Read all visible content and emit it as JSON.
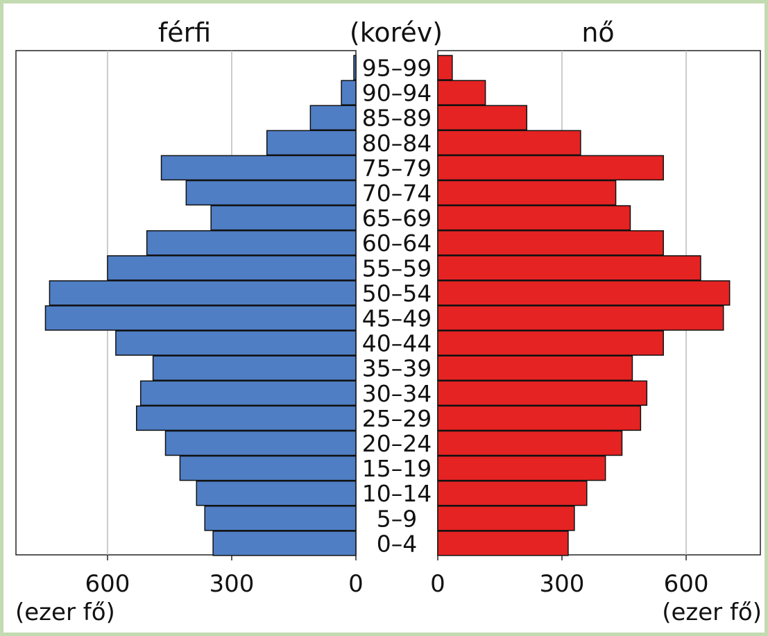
{
  "chart_data": {
    "type": "bar",
    "orientation": "horizontal-population-pyramid",
    "header": {
      "left": "férfi",
      "center": "(korév)",
      "right": "nő"
    },
    "categories": [
      "95–99",
      "90–94",
      "85–89",
      "80–84",
      "75–79",
      "70–74",
      "65–69",
      "60–64",
      "55–59",
      "50–54",
      "45–49",
      "40–44",
      "35–39",
      "30–34",
      "25–29",
      "20–24",
      "15–19",
      "10–14",
      "5–9",
      "0–4"
    ],
    "series": [
      {
        "name": "férfi",
        "color": "#4f7ec4",
        "values": [
          5,
          35,
          110,
          215,
          470,
          410,
          350,
          505,
          600,
          740,
          750,
          580,
          490,
          520,
          530,
          460,
          425,
          385,
          365,
          345
        ]
      },
      {
        "name": "nő",
        "color": "#e52323",
        "values": [
          35,
          115,
          215,
          345,
          545,
          430,
          465,
          545,
          635,
          705,
          690,
          545,
          470,
          505,
          490,
          445,
          405,
          360,
          330,
          315
        ]
      }
    ],
    "xlim": [
      0,
      800
    ],
    "x_ticks": [
      0,
      300,
      600
    ],
    "x_tick_labels": [
      "0",
      "300",
      "600"
    ],
    "unit_label_left": "(ezer fő)",
    "unit_label_right": "(ezer fő)",
    "grid": true
  }
}
